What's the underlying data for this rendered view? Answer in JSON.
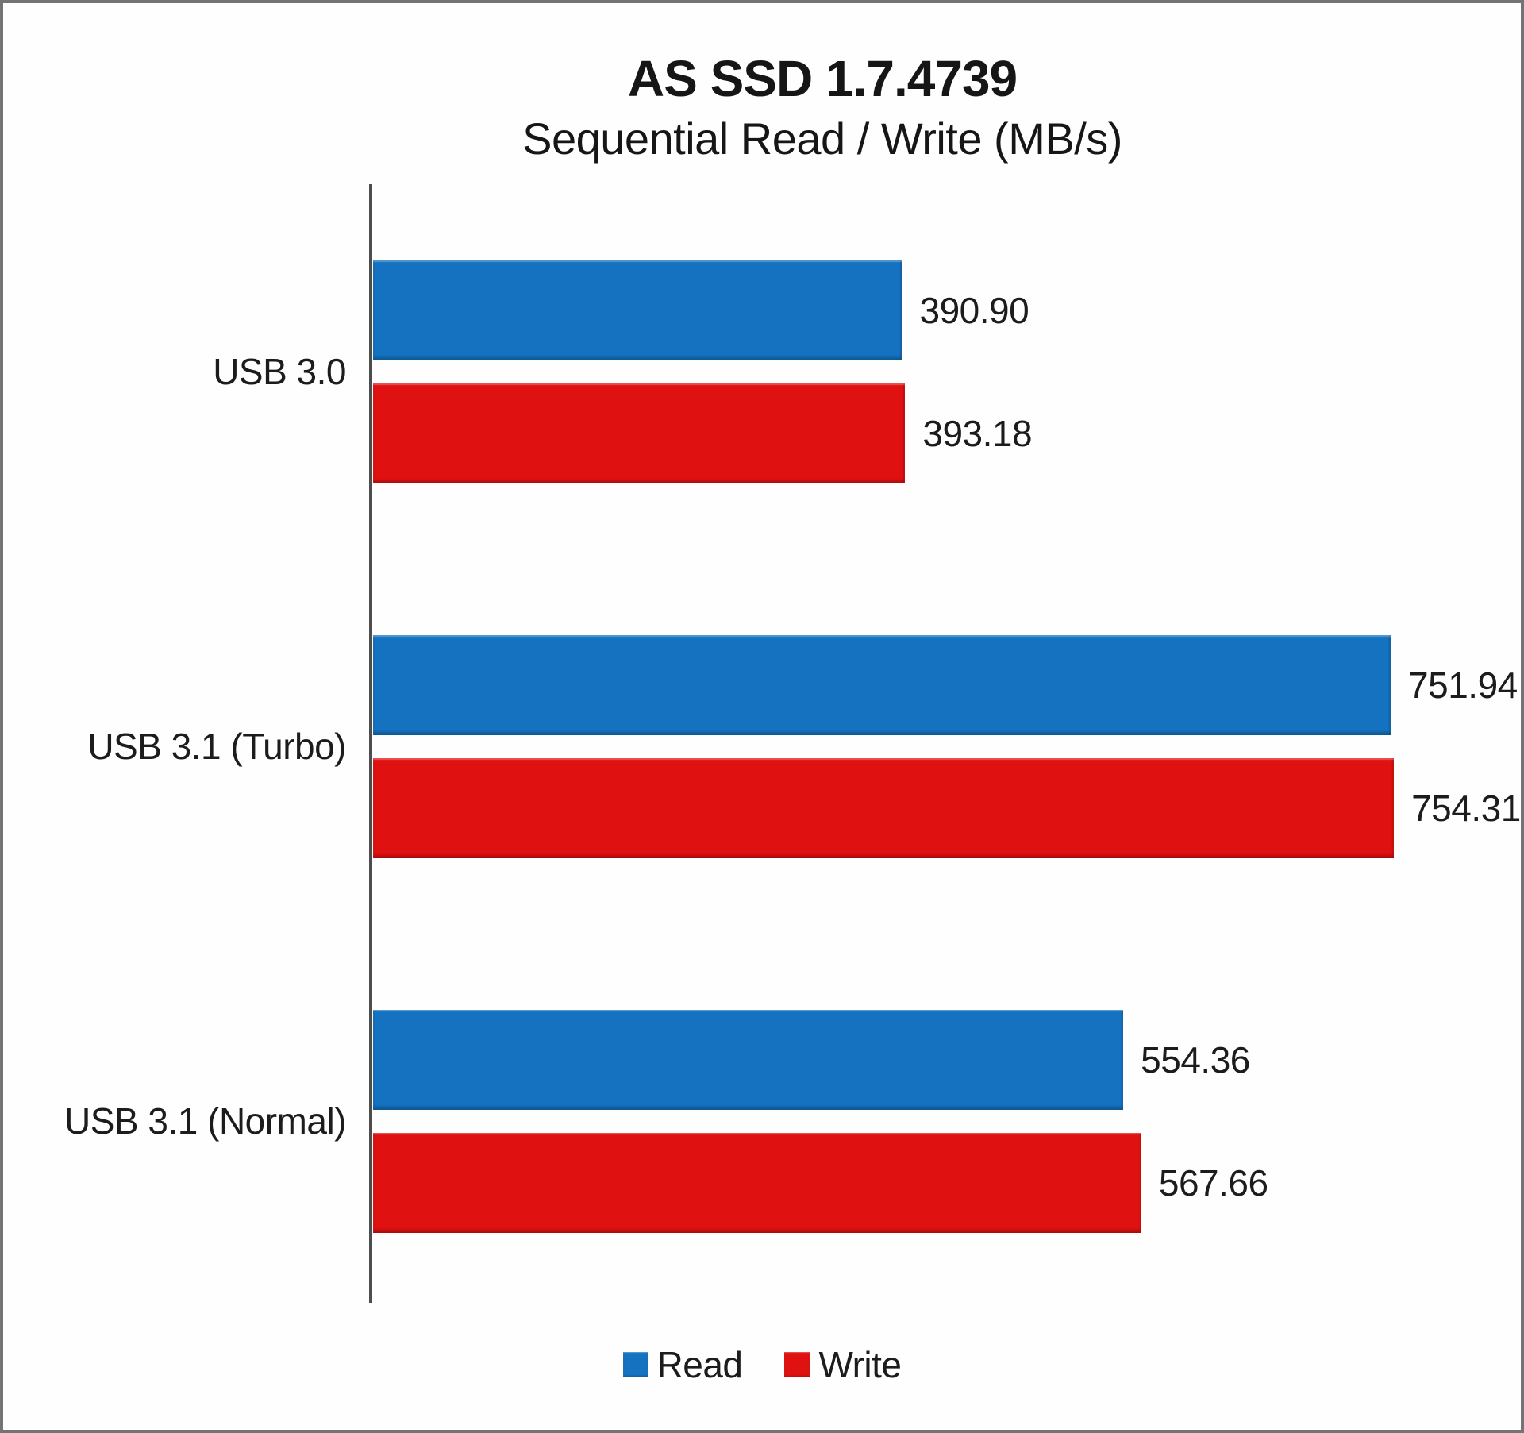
{
  "chart_data": {
    "type": "bar",
    "orientation": "horizontal",
    "title": "AS SSD 1.7.4739",
    "subtitle": "Sequential Read / Write (MB/s)",
    "categories": [
      "USB 3.0",
      "USB 3.1 (Turbo)",
      "USB 3.1 (Normal)"
    ],
    "series": [
      {
        "name": "Read",
        "color": "#1472C0",
        "values": [
          390.9,
          751.94,
          554.36
        ],
        "labels": [
          "390.90",
          "751.94",
          "554.36"
        ]
      },
      {
        "name": "Write",
        "color": "#E01111",
        "values": [
          393.18,
          754.31,
          567.66
        ],
        "labels": [
          "393.18",
          "754.31",
          "567.66"
        ]
      }
    ],
    "axis_max": 800,
    "grid": false,
    "value_labels_position": "outside-end",
    "legend_position": "bottom",
    "axis_color": "#4d4d4d",
    "text_color": "#1c1c1c"
  }
}
